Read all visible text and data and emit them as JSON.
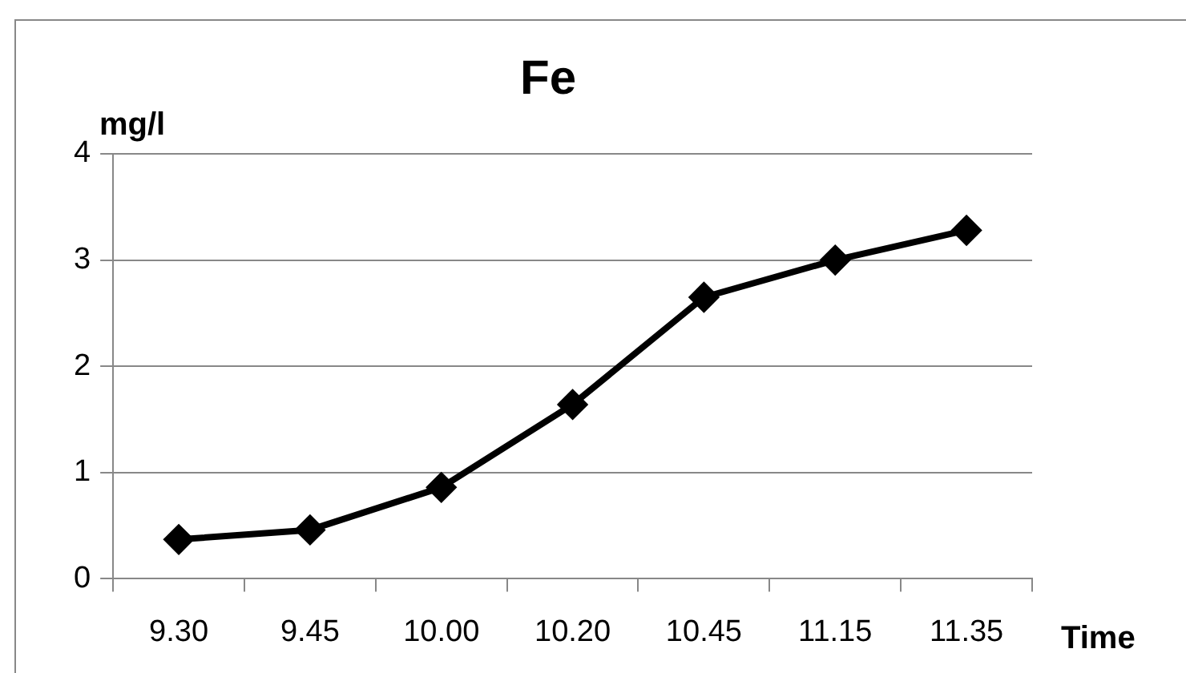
{
  "chart_data": {
    "type": "line",
    "title": "Fe",
    "xlabel": "Time",
    "ylabel": "mg/l",
    "categories": [
      "9.30",
      "9.45",
      "10.00",
      "10.20",
      "10.45",
      "11.15",
      "11.35"
    ],
    "series": [
      {
        "color": "#000000",
        "values": [
          0.37,
          0.46,
          0.86,
          1.64,
          2.65,
          3.0,
          3.28
        ]
      }
    ],
    "ylim": [
      0,
      4
    ],
    "yticks": [
      0,
      1,
      2,
      3,
      4
    ],
    "grid": "y",
    "legend": false,
    "marker": "diamond",
    "line_style": "solid"
  }
}
